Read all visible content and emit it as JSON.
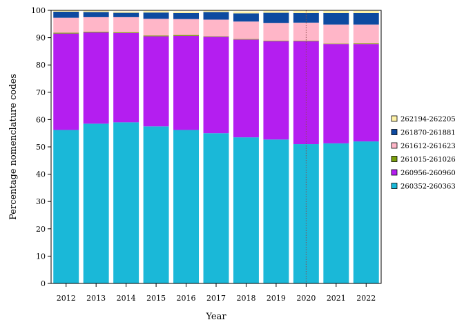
{
  "chart_data": {
    "type": "bar",
    "stacked": true,
    "xlabel": "Year",
    "ylabel": "Percentage nomenclature codes",
    "ylim": [
      0,
      100
    ],
    "yticks": [
      0,
      10,
      20,
      30,
      40,
      50,
      60,
      70,
      80,
      90,
      100
    ],
    "grid": false,
    "legend_position": "right",
    "reference_line": {
      "x": "2020",
      "style": "dotted",
      "color": "#8b4a4a"
    },
    "categories": [
      "2012",
      "2013",
      "2014",
      "2015",
      "2016",
      "2017",
      "2018",
      "2019",
      "2020",
      "2021",
      "2022"
    ],
    "series": [
      {
        "name": "260352-260363",
        "color": "#1ab8d8",
        "values": [
          56.2,
          58.5,
          59.0,
          57.5,
          56.2,
          55.0,
          53.5,
          52.7,
          51.0,
          51.3,
          52.0
        ]
      },
      {
        "name": "260956-260960",
        "color": "#b41ef0",
        "values": [
          35.3,
          33.4,
          32.7,
          33.0,
          34.5,
          35.3,
          35.8,
          36.0,
          37.7,
          36.3,
          35.6
        ]
      },
      {
        "name": "261015-261026",
        "color": "#7a9e0c",
        "values": [
          0.3,
          0.3,
          0.3,
          0.3,
          0.3,
          0.2,
          0.2,
          0.2,
          0.2,
          0.2,
          0.3
        ]
      },
      {
        "name": "261612-261623",
        "color": "#ffb6c8",
        "values": [
          5.5,
          5.3,
          5.5,
          6.1,
          5.8,
          6.1,
          6.4,
          6.5,
          6.6,
          7.0,
          6.9
        ]
      },
      {
        "name": "261870-261881",
        "color": "#0d4aa0",
        "values": [
          2.2,
          1.9,
          1.6,
          2.3,
          2.2,
          2.8,
          3.0,
          3.7,
          3.5,
          4.2,
          4.2
        ]
      },
      {
        "name": "262194-262205",
        "color": "#fff2a8",
        "values": [
          0.5,
          0.5,
          0.5,
          0.6,
          0.6,
          0.6,
          0.7,
          0.7,
          0.8,
          0.8,
          0.8
        ]
      }
    ]
  }
}
